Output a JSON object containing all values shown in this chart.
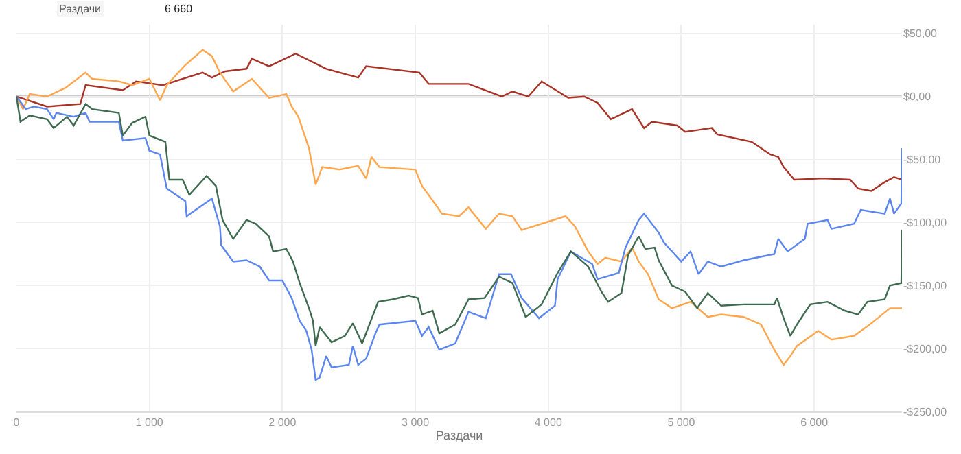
{
  "chart_data": {
    "type": "line",
    "xlabel": "Раздачи",
    "annotations": [
      "Раздачи",
      "6 660"
    ],
    "xlim": [
      0,
      6660
    ],
    "ylim": [
      -250,
      57
    ],
    "xticks": [
      0,
      {
        "value": 1000,
        "label": "1 000"
      },
      {
        "value": 2000,
        "label": "2 000"
      },
      {
        "value": 3000,
        "label": "3 000"
      },
      {
        "value": 4000,
        "label": "4 000"
      },
      {
        "value": 5000,
        "label": "5 000"
      },
      {
        "value": 6000,
        "label": "6 000"
      }
    ],
    "yticks": [
      {
        "value": 50,
        "label": "$50,00"
      },
      {
        "value": 0,
        "label": "$0,00"
      },
      {
        "value": -50,
        "label": "-$50,00"
      },
      {
        "value": -100,
        "label": "-$100,00"
      },
      {
        "value": -150,
        "label": "-$150,00"
      },
      {
        "value": -200,
        "label": "-$200,00"
      },
      {
        "value": -250,
        "label": "-$250,00"
      }
    ],
    "grid": true,
    "marker": "none",
    "line_style": "solid",
    "ref_lines": [
      {
        "axis": "y",
        "value": 0,
        "color": "#bbbbbb"
      }
    ],
    "series": [
      {
        "color": "#a93226",
        "x": [
          0,
          230,
          480,
          520,
          800,
          900,
          1100,
          1400,
          1470,
          1570,
          1730,
          1770,
          1900,
          2100,
          2330,
          2570,
          2630,
          3030,
          3100,
          3400,
          3650,
          3730,
          3850,
          3950,
          4150,
          4270,
          4370,
          4470,
          4630,
          4720,
          4780,
          4970,
          5030,
          5230,
          5270,
          5530,
          5670,
          5730,
          5770,
          5850,
          6070,
          6270,
          6330,
          6430,
          6530,
          6600,
          6660
        ],
        "values": [
          0,
          -8,
          -6,
          9,
          5,
          12,
          9,
          19,
          15,
          20,
          22,
          30,
          24,
          34,
          22,
          15,
          24,
          19,
          10,
          10,
          0,
          4,
          0,
          12,
          -1,
          0,
          -5,
          -18,
          -10,
          -25,
          -20,
          -23,
          -28,
          -25,
          -30,
          -36,
          -46,
          -48,
          -56,
          -66,
          -65,
          -66,
          -73,
          -75,
          -68,
          -64,
          -66
        ]
      },
      {
        "color": "#ffa64d",
        "x": [
          0,
          50,
          100,
          230,
          370,
          520,
          570,
          770,
          870,
          1000,
          1080,
          1130,
          1270,
          1400,
          1470,
          1530,
          1630,
          1770,
          1900,
          2030,
          2070,
          2120,
          2200,
          2250,
          2300,
          2430,
          2570,
          2630,
          2670,
          2730,
          3000,
          3050,
          3120,
          3200,
          3330,
          3400,
          3530,
          3630,
          3730,
          3800,
          4130,
          4200,
          4300,
          4370,
          4430,
          4550,
          4630,
          4680,
          4750,
          4830,
          4930,
          5070,
          5200,
          5300,
          5470,
          5600,
          5700,
          5770,
          5820,
          5870,
          6030,
          6130,
          6300,
          6430,
          6570,
          6660
        ],
        "values": [
          0,
          -10,
          2,
          0,
          7,
          19,
          14,
          12,
          9,
          14,
          -3,
          9,
          25,
          37,
          32,
          19,
          4,
          14,
          -1,
          2,
          -8,
          -16,
          -41,
          -70,
          -56,
          -58,
          -55,
          -65,
          -48,
          -56,
          -58,
          -71,
          -81,
          -93,
          -95,
          -88,
          -105,
          -93,
          -95,
          -106,
          -95,
          -103,
          -123,
          -133,
          -128,
          -131,
          -120,
          -131,
          -141,
          -161,
          -168,
          -163,
          -175,
          -173,
          -175,
          -181,
          -201,
          -213,
          -206,
          -198,
          -186,
          -193,
          -190,
          -180,
          -168,
          -168
        ]
      },
      {
        "color": "#5b86f0",
        "x": [
          0,
          70,
          130,
          230,
          280,
          300,
          430,
          520,
          550,
          770,
          800,
          970,
          1000,
          1080,
          1130,
          1270,
          1280,
          1470,
          1530,
          1540,
          1630,
          1730,
          1830,
          1900,
          2000,
          2070,
          2130,
          2180,
          2220,
          2250,
          2280,
          2330,
          2370,
          2500,
          2530,
          2570,
          2630,
          2700,
          2730,
          3000,
          3050,
          3100,
          3180,
          3300,
          3400,
          3530,
          3630,
          3720,
          3800,
          3930,
          4050,
          4070,
          4170,
          4330,
          4370,
          4530,
          4580,
          4680,
          4720,
          4830,
          4870,
          5000,
          5070,
          5130,
          5200,
          5300,
          5470,
          5700,
          5730,
          5800,
          5930,
          5950,
          6100,
          6130,
          6300,
          6350,
          6530,
          6570,
          6600,
          6655,
          6660
        ],
        "values": [
          0,
          -10,
          -8,
          -10,
          -18,
          -13,
          -16,
          -13,
          -20,
          -20,
          -35,
          -33,
          -43,
          -46,
          -73,
          -83,
          -95,
          -81,
          -103,
          -118,
          -131,
          -130,
          -135,
          -146,
          -146,
          -160,
          -178,
          -186,
          -201,
          -225,
          -223,
          -206,
          -215,
          -213,
          -198,
          -213,
          -208,
          -188,
          -181,
          -178,
          -190,
          -183,
          -201,
          -196,
          -171,
          -176,
          -141,
          -141,
          -160,
          -176,
          -166,
          -145,
          -123,
          -133,
          -145,
          -140,
          -120,
          -98,
          -93,
          -108,
          -116,
          -131,
          -123,
          -141,
          -131,
          -135,
          -130,
          -125,
          -113,
          -123,
          -113,
          -101,
          -98,
          -105,
          -101,
          -90,
          -93,
          -81,
          -93,
          -85,
          -41
        ]
      },
      {
        "color": "#3e6b50",
        "x": [
          0,
          30,
          100,
          230,
          280,
          380,
          430,
          520,
          570,
          770,
          800,
          870,
          970,
          1000,
          1120,
          1150,
          1250,
          1300,
          1430,
          1500,
          1550,
          1630,
          1730,
          1800,
          1900,
          1930,
          2030,
          2080,
          2130,
          2200,
          2230,
          2250,
          2280,
          2370,
          2470,
          2530,
          2600,
          2720,
          2830,
          2950,
          3020,
          3050,
          3130,
          3180,
          3300,
          3400,
          3520,
          3630,
          3730,
          3830,
          3950,
          4070,
          4170,
          4300,
          4400,
          4450,
          4550,
          4600,
          4680,
          4730,
          4800,
          4830,
          4930,
          5030,
          5120,
          5200,
          5300,
          5470,
          5700,
          5720,
          5770,
          5820,
          5870,
          5970,
          6100,
          6230,
          6330,
          6400,
          6530,
          6570,
          6655,
          6660
        ],
        "values": [
          0,
          -20,
          -15,
          -18,
          -25,
          -16,
          -23,
          -6,
          -10,
          -13,
          -31,
          -21,
          -16,
          -31,
          -36,
          -66,
          -66,
          -78,
          -63,
          -71,
          -98,
          -113,
          -98,
          -101,
          -111,
          -123,
          -121,
          -131,
          -148,
          -168,
          -178,
          -198,
          -183,
          -195,
          -190,
          -180,
          -196,
          -163,
          -161,
          -158,
          -160,
          -173,
          -170,
          -188,
          -181,
          -161,
          -160,
          -143,
          -148,
          -175,
          -165,
          -140,
          -123,
          -135,
          -155,
          -163,
          -156,
          -126,
          -111,
          -121,
          -120,
          -130,
          -150,
          -155,
          -168,
          -156,
          -166,
          -165,
          -165,
          -160,
          -176,
          -190,
          -181,
          -165,
          -163,
          -170,
          -173,
          -163,
          -161,
          -150,
          -148,
          -106
        ]
      }
    ]
  }
}
